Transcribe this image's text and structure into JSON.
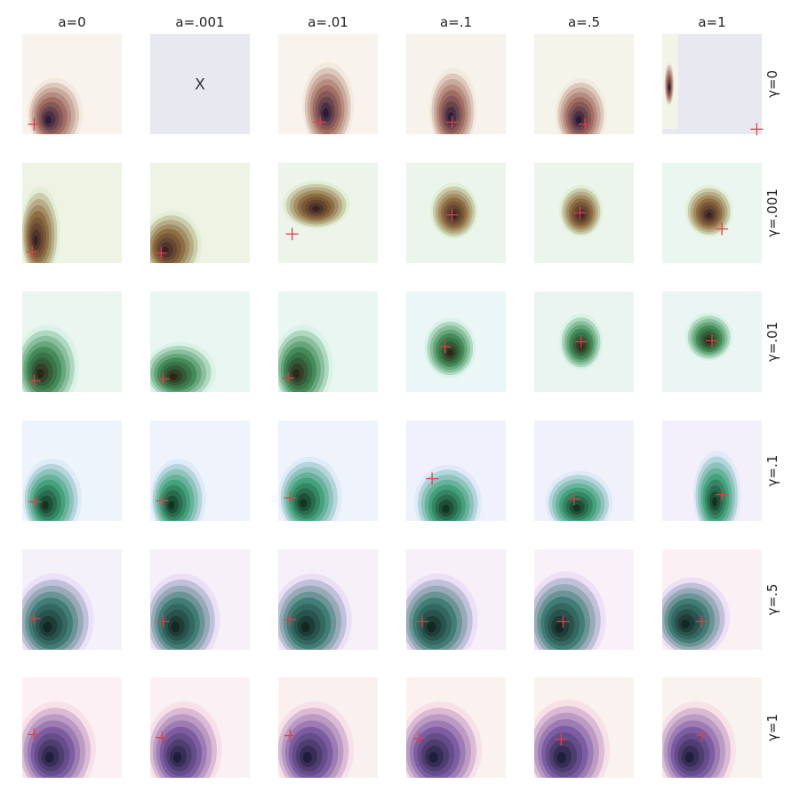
{
  "chart_data": {
    "type": "contour-grid",
    "columns": [
      "a=0",
      "a=.001",
      "a=.01",
      "a=.1",
      "a=.5",
      "a=1"
    ],
    "rows": [
      "γ=0",
      "γ=.001",
      "γ=.01",
      "γ=.1",
      "γ=.5",
      "γ=1"
    ],
    "background_colors": [
      [
        "#f8f3ed",
        "#e8e8f1",
        "#f8f3ed",
        "#f6f3ec",
        "#f4f4ea",
        "#f2f4e8"
      ],
      [
        "#eef3e4",
        "#eef3e4",
        "#edf4ea",
        "#ecf5ec",
        "#ebf5ec",
        "#eaf6ef"
      ],
      [
        "#ebf6f1",
        "#eaf6f1",
        "#eaf6f1",
        "#ebf6f6",
        "#eaf5f2",
        "#ebf5f4"
      ],
      [
        "#eef4fb",
        "#eff3fc",
        "#eff3fc",
        "#f0f1fc",
        "#f1f1fb",
        "#f3f0fb"
      ],
      [
        "#f4f1fb",
        "#f6f0f9",
        "#f6f0f9",
        "#f7f0f8",
        "#faf0f7",
        "#fbf0f4"
      ],
      [
        "#fcf0f4",
        "#fbf0f3",
        "#fbf0f0",
        "#fbf1ee",
        "#faf2ee",
        "#f8f3ee"
      ]
    ],
    "row_palettes": [
      [
        "#efe2d4",
        "#a06a60",
        "#2a1a3a"
      ],
      [
        "#dbe9c8",
        "#8d6a40",
        "#3a1f24"
      ],
      [
        "#cdeedd",
        "#3f8a55",
        "#2c2416"
      ],
      [
        "#d4e4f6",
        "#3f9e78",
        "#12321e"
      ],
      [
        "#e4d4f6",
        "#3d7a72",
        "#122522"
      ],
      [
        "#f4d4e2",
        "#7a5aa0",
        "#1d1d3a"
      ]
    ],
    "blobs": [
      [
        {
          "cx": 0.33,
          "cy": 0.2,
          "rx": 0.28,
          "ry": 0.36,
          "skew": 0.15
        },
        null,
        {
          "cx": 0.5,
          "cy": 0.28,
          "rx": 0.26,
          "ry": 0.44,
          "skew": 0.05
        },
        {
          "cx": 0.47,
          "cy": 0.24,
          "rx": 0.24,
          "ry": 0.42,
          "skew": 0.05
        },
        {
          "cx": 0.47,
          "cy": 0.2,
          "rx": 0.26,
          "ry": 0.36,
          "skew": 0.05
        },
        {
          "cx": 0.07,
          "cy": 0.5,
          "rx": 0.05,
          "ry": 0.22,
          "skew": 0
        }
      ],
      [
        {
          "cx": 0.18,
          "cy": 0.3,
          "rx": 0.2,
          "ry": 0.46,
          "skew": 0.1
        },
        {
          "cx": 0.22,
          "cy": 0.18,
          "rx": 0.3,
          "ry": 0.34,
          "skew": 0.15
        },
        {
          "cx": 0.38,
          "cy": 0.58,
          "rx": 0.34,
          "ry": 0.24,
          "skew": 0
        },
        {
          "cx": 0.48,
          "cy": 0.52,
          "rx": 0.24,
          "ry": 0.28,
          "skew": 0
        },
        {
          "cx": 0.47,
          "cy": 0.52,
          "rx": 0.22,
          "ry": 0.26,
          "skew": 0
        },
        {
          "cx": 0.47,
          "cy": 0.52,
          "rx": 0.24,
          "ry": 0.26,
          "skew": 0
        }
      ],
      [
        {
          "cx": 0.25,
          "cy": 0.25,
          "rx": 0.32,
          "ry": 0.42,
          "skew": 0.15
        },
        {
          "cx": 0.3,
          "cy": 0.2,
          "rx": 0.36,
          "ry": 0.3,
          "skew": 0.15
        },
        {
          "cx": 0.25,
          "cy": 0.25,
          "rx": 0.3,
          "ry": 0.42,
          "skew": 0.15
        },
        {
          "cx": 0.44,
          "cy": 0.44,
          "rx": 0.26,
          "ry": 0.3,
          "skew": 0
        },
        {
          "cx": 0.47,
          "cy": 0.5,
          "rx": 0.22,
          "ry": 0.28,
          "skew": 0
        },
        {
          "cx": 0.47,
          "cy": 0.55,
          "rx": 0.24,
          "ry": 0.24,
          "skew": 0
        }
      ],
      [
        {
          "cx": 0.3,
          "cy": 0.22,
          "rx": 0.3,
          "ry": 0.4,
          "skew": 0.15
        },
        {
          "cx": 0.28,
          "cy": 0.22,
          "rx": 0.28,
          "ry": 0.4,
          "skew": 0.15
        },
        {
          "cx": 0.32,
          "cy": 0.24,
          "rx": 0.32,
          "ry": 0.4,
          "skew": 0.15
        },
        {
          "cx": 0.42,
          "cy": 0.18,
          "rx": 0.34,
          "ry": 0.38,
          "skew": 0.05
        },
        {
          "cx": 0.45,
          "cy": 0.18,
          "rx": 0.34,
          "ry": 0.32,
          "skew": 0.05
        },
        {
          "cx": 0.55,
          "cy": 0.26,
          "rx": 0.24,
          "ry": 0.44,
          "skew": 0.05
        }
      ],
      [
        {
          "cx": 0.32,
          "cy": 0.3,
          "rx": 0.4,
          "ry": 0.46,
          "skew": 0.15
        },
        {
          "cx": 0.32,
          "cy": 0.3,
          "rx": 0.38,
          "ry": 0.46,
          "skew": 0.15
        },
        {
          "cx": 0.34,
          "cy": 0.3,
          "rx": 0.4,
          "ry": 0.46,
          "skew": 0.15
        },
        {
          "cx": 0.32,
          "cy": 0.3,
          "rx": 0.4,
          "ry": 0.46,
          "skew": 0.15
        },
        {
          "cx": 0.32,
          "cy": 0.3,
          "rx": 0.4,
          "ry": 0.48,
          "skew": 0.15
        },
        {
          "cx": 0.3,
          "cy": 0.32,
          "rx": 0.38,
          "ry": 0.4,
          "skew": 0.15
        }
      ],
      [
        {
          "cx": 0.34,
          "cy": 0.28,
          "rx": 0.4,
          "ry": 0.48,
          "skew": 0.15
        },
        {
          "cx": 0.34,
          "cy": 0.28,
          "rx": 0.38,
          "ry": 0.48,
          "skew": 0.15
        },
        {
          "cx": 0.36,
          "cy": 0.28,
          "rx": 0.4,
          "ry": 0.48,
          "skew": 0.15
        },
        {
          "cx": 0.34,
          "cy": 0.28,
          "rx": 0.42,
          "ry": 0.48,
          "skew": 0.15
        },
        {
          "cx": 0.34,
          "cy": 0.28,
          "rx": 0.42,
          "ry": 0.5,
          "skew": 0.15
        },
        {
          "cx": 0.34,
          "cy": 0.28,
          "rx": 0.4,
          "ry": 0.48,
          "skew": 0.15
        }
      ]
    ],
    "markers": [
      [
        [
          0.12,
          0.1
        ],
        null,
        [
          0.42,
          0.12
        ],
        [
          0.46,
          0.12
        ],
        [
          0.51,
          0.1
        ],
        [
          0.95,
          0.05
        ]
      ],
      [
        [
          0.1,
          0.11
        ],
        [
          0.11,
          0.1
        ],
        [
          0.14,
          0.29
        ],
        [
          0.46,
          0.48
        ],
        [
          0.46,
          0.5
        ],
        [
          0.6,
          0.34
        ]
      ],
      [
        [
          0.12,
          0.11
        ],
        [
          0.13,
          0.13
        ],
        [
          0.1,
          0.14
        ],
        [
          0.39,
          0.45
        ],
        [
          0.47,
          0.5
        ],
        [
          0.5,
          0.51
        ]
      ],
      [
        [
          0.13,
          0.19
        ],
        [
          0.12,
          0.2
        ],
        [
          0.12,
          0.23
        ],
        [
          0.26,
          0.42
        ],
        [
          0.4,
          0.22
        ],
        [
          0.6,
          0.26
        ]
      ],
      [
        [
          0.12,
          0.31
        ],
        [
          0.13,
          0.28
        ],
        [
          0.12,
          0.3
        ],
        [
          0.16,
          0.28
        ],
        [
          0.29,
          0.28
        ],
        [
          0.4,
          0.28
        ]
      ],
      [
        [
          0.12,
          0.43
        ],
        [
          0.12,
          0.4
        ],
        [
          0.12,
          0.42
        ],
        [
          0.13,
          0.39
        ],
        [
          0.27,
          0.38
        ],
        [
          0.4,
          0.42
        ]
      ]
    ],
    "missing_cell": {
      "row": 0,
      "col": 1,
      "label": "X"
    },
    "special_panel": {
      "row": 0,
      "col": 5,
      "background": "#e8e8f1",
      "strip_background": "#f2f4e8"
    },
    "marker_color": "#d9424f",
    "contour_levels": 9
  }
}
